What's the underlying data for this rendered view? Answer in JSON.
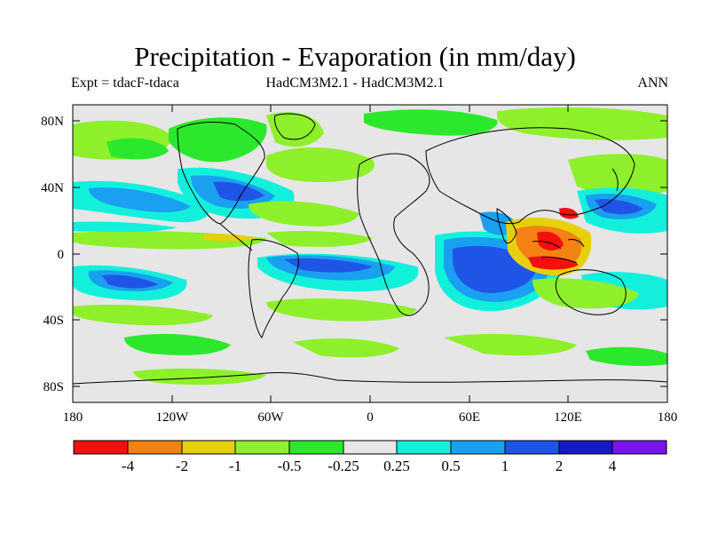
{
  "title": "Precipitation - Evaporation (in mm/day)",
  "subtitle": {
    "left": "Expt = tdacF-tdaca",
    "center": "HadCM3M2.1 - HadCM3M2.1",
    "right": "ANN"
  },
  "axes": {
    "y_ticks": [
      "80N",
      "40N",
      "0",
      "40S",
      "80S"
    ],
    "x_ticks": [
      "180",
      "120W",
      "60W",
      "0",
      "60E",
      "120E",
      "180"
    ]
  },
  "colorbar": {
    "colors": [
      "#f50f0f",
      "#f48212",
      "#e6d00c",
      "#8ef02b",
      "#2ce82c",
      "#e6e6e6",
      "#12f0dc",
      "#1aa0f0",
      "#1f55e6",
      "#1818c8",
      "#7a14ec"
    ],
    "labels": [
      "-4",
      "-2",
      "-1",
      "-0.5",
      "-0.25",
      "0.25",
      "0.5",
      "1",
      "2",
      "4"
    ]
  },
  "palette": {
    "neutral": "#e6e6e6",
    "coast": "#000000"
  }
}
